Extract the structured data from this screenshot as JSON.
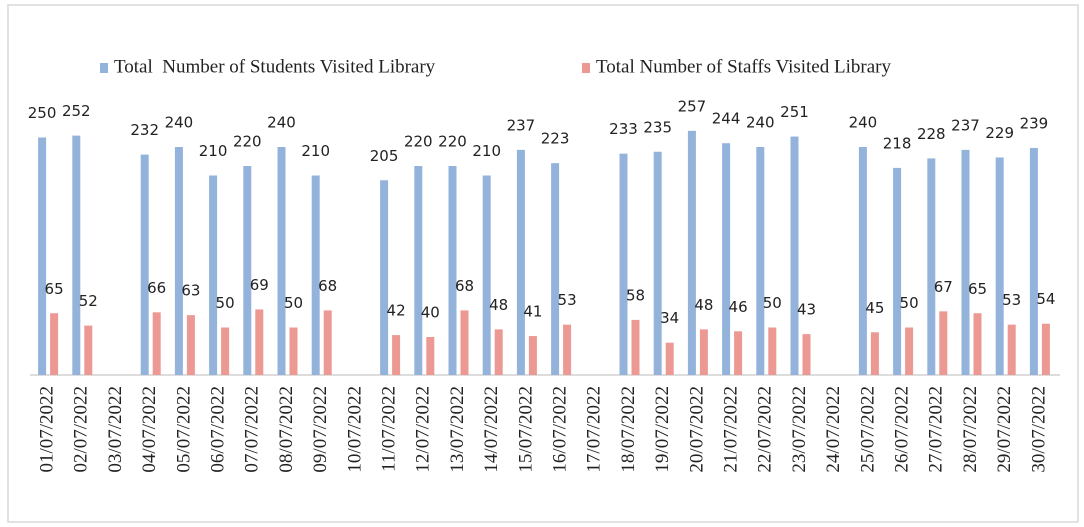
{
  "chart_data": {
    "type": "bar",
    "categories": [
      "01/07/2022",
      "02/07/2022",
      "03/07/2022",
      "04/07/2022",
      "05/07/2022",
      "06/07/2022",
      "07/07/2022",
      "08/07/2022",
      "09/07/2022",
      "10/07/2022",
      "11/07/2022",
      "12/07/2022",
      "13/07/2022",
      "14/07/2022",
      "15/07/2022",
      "16/07/2022",
      "17/07/2022",
      "18/07/2022",
      "19/07/2022",
      "20/07/2022",
      "21/07/2022",
      "22/07/2022",
      "23/07/2022",
      "24/07/2022",
      "25/07/2022",
      "26/07/2022",
      "27/07/2022",
      "28/07/2022",
      "29/07/2022",
      "30/07/2022"
    ],
    "series": [
      {
        "name": "Total  Number of Students Visited Library",
        "color": "#94b3db",
        "values": [
          250,
          252,
          null,
          232,
          240,
          210,
          220,
          240,
          210,
          null,
          205,
          220,
          220,
          210,
          237,
          223,
          null,
          233,
          235,
          257,
          244,
          240,
          251,
          null,
          240,
          218,
          228,
          237,
          229,
          239
        ]
      },
      {
        "name": "Total Number of Staffs Visited Library",
        "color": "#ec9893",
        "values": [
          65,
          52,
          null,
          66,
          63,
          50,
          69,
          50,
          68,
          null,
          42,
          40,
          68,
          48,
          41,
          53,
          null,
          58,
          34,
          48,
          46,
          50,
          43,
          null,
          45,
          50,
          67,
          65,
          53,
          54
        ]
      }
    ],
    "legend": "top"
  }
}
